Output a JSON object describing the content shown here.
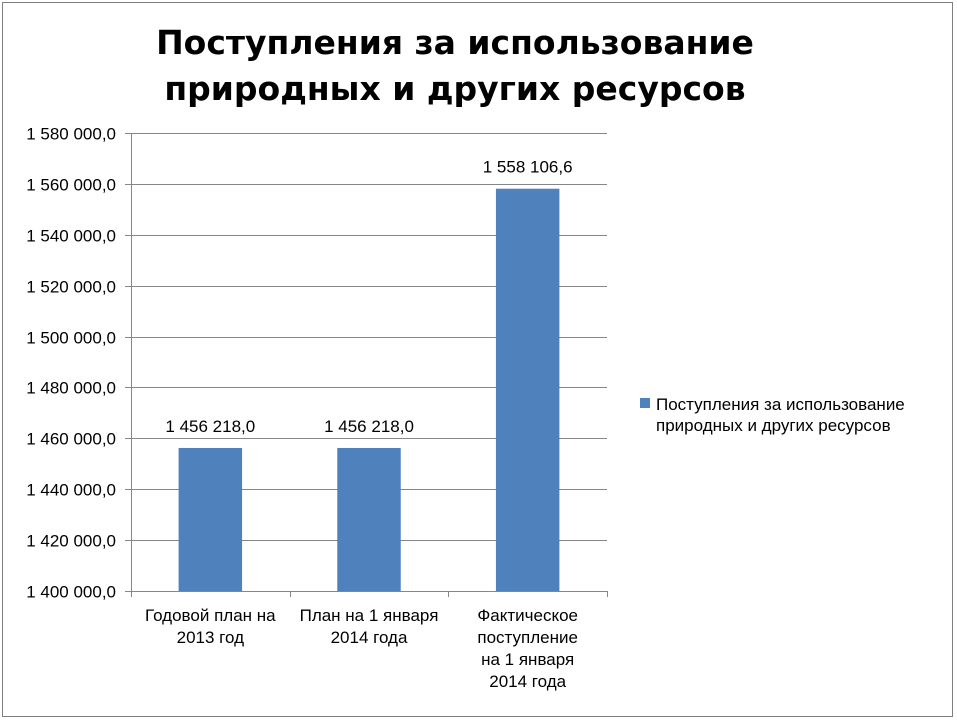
{
  "chart_data": {
    "type": "bar",
    "title": "Поступления за использование природных и других ресурсов",
    "xlabel": "",
    "ylabel": "",
    "categories": [
      "Годовой  план на 2013  год",
      "План на 1 января 2014 года",
      "Фактическое поступление на  1 января 2014 года"
    ],
    "series": [
      {
        "name": "Поступления за использование природных и других ресурсов",
        "values": [
          1456218.0,
          1456218.0,
          1558106.6
        ],
        "labels": [
          "1 456 218,0",
          "1 456 218,0",
          "1 558 106,6"
        ]
      }
    ],
    "ylim": [
      1400000,
      1580000
    ],
    "yticks": [
      1400000,
      1420000,
      1440000,
      1460000,
      1480000,
      1500000,
      1520000,
      1540000,
      1560000,
      1580000
    ],
    "ytick_labels": [
      "1 400 000,0",
      "1 420 000,0",
      "1 440 000,0",
      "1 460 000,0",
      "1 480 000,0",
      "1 500 000,0",
      "1 520 000,0",
      "1 540 000,0",
      "1 560 000,0",
      "1 580 000,0"
    ],
    "category_lines": [
      [
        "Годовой  план на",
        "2013  год"
      ],
      [
        "План на 1 января",
        "2014 года"
      ],
      [
        "Фактическое",
        "поступление",
        "на  1 января",
        "2014 года"
      ]
    ],
    "grid": true,
    "legend": "right",
    "bar_color": "#4f81bd",
    "grid_color": "#868686"
  }
}
